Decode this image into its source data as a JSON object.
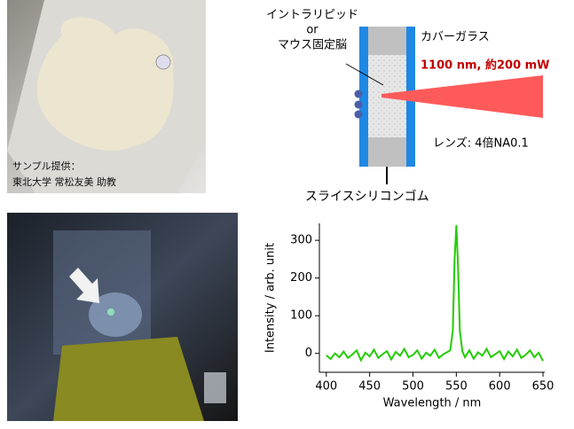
{
  "photo_caption": [
    "サンプル提供：",
    "東北大学 常松友美 助教"
  ],
  "diagram": {
    "sample_label": [
      "イントラリピッド",
      "or",
      "マウス固定脳"
    ],
    "glass_label": "カバーガラス",
    "laser_label": "1100 nm, 約200 mW",
    "lens_label": "レンズ: 4倍NA0.1",
    "spacer_label": "スライスシリコンゴム"
  },
  "chart_data": {
    "type": "line",
    "xlabel": "Wavelength / nm",
    "ylabel": "Intensity / arb. unit",
    "color": "#22cc00",
    "x": [
      400,
      405,
      410,
      415,
      420,
      425,
      430,
      435,
      440,
      445,
      450,
      455,
      460,
      465,
      470,
      475,
      480,
      485,
      490,
      495,
      500,
      505,
      510,
      515,
      520,
      525,
      530,
      535,
      540,
      543,
      546,
      548,
      550,
      552,
      554,
      557,
      560,
      565,
      570,
      575,
      580,
      585,
      590,
      595,
      600,
      605,
      610,
      615,
      620,
      625,
      630,
      635,
      640,
      645,
      650
    ],
    "values": [
      -5,
      -15,
      0,
      -10,
      5,
      -12,
      -3,
      8,
      -18,
      2,
      -8,
      10,
      -12,
      -2,
      6,
      -16,
      4,
      -6,
      12,
      -10,
      -4,
      8,
      -14,
      2,
      -6,
      10,
      -12,
      -2,
      4,
      8,
      60,
      250,
      340,
      230,
      60,
      5,
      -10,
      8,
      -14,
      3,
      -6,
      12,
      -10,
      -2,
      6,
      -15,
      5,
      -8,
      10,
      -12,
      -4,
      8,
      -10,
      2,
      -20
    ],
    "xlim": [
      392,
      652
    ],
    "ylim": [
      -50,
      345
    ],
    "xticks": [
      400,
      450,
      500,
      550,
      600,
      650
    ],
    "yticks": [
      0,
      100,
      200,
      300
    ]
  }
}
